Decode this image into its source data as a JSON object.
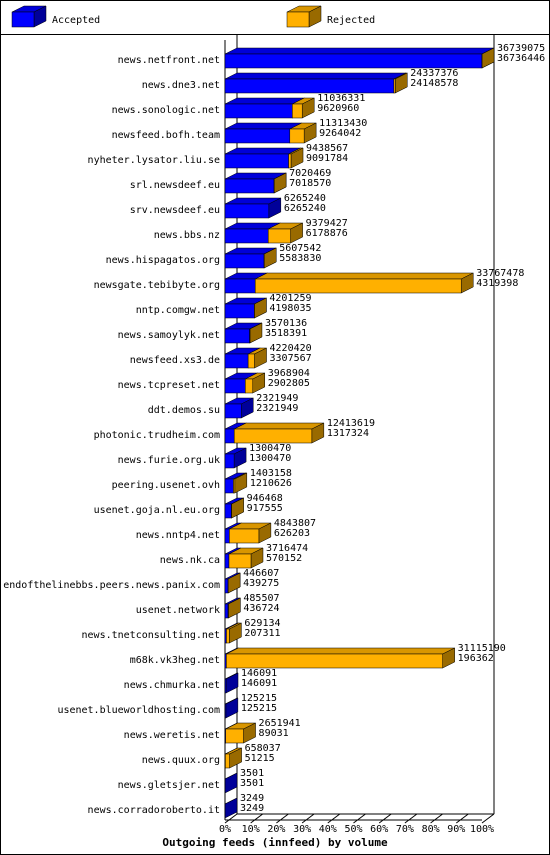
{
  "chart_data": {
    "type": "bar3d-stacked-horizontal",
    "title": "Outgoing feeds (innfeed) by volume",
    "categories": [
      "news.netfront.net",
      "news.dne3.net",
      "news.sonologic.net",
      "newsfeed.bofh.team",
      "nyheter.lysator.liu.se",
      "srl.newsdeef.eu",
      "srv.newsdeef.eu",
      "news.bbs.nz",
      "news.hispagatos.org",
      "newsgate.tebibyte.org",
      "nntp.comgw.net",
      "news.samoylyk.net",
      "newsfeed.xs3.de",
      "news.tcpreset.net",
      "ddt.demos.su",
      "photonic.trudheim.com",
      "news.furie.org.uk",
      "peering.usenet.ovh",
      "usenet.goja.nl.eu.org",
      "news.nntp4.net",
      "news.nk.ca",
      "endofthelinebbs.peers.news.panix.com",
      "usenet.network",
      "news.tnetconsulting.net",
      "m68k.vk3heg.net",
      "news.chmurka.net",
      "usenet.blueworldhosting.com",
      "news.weretis.net",
      "news.quux.org",
      "news.gletsjer.net",
      "news.corradoroberto.it"
    ],
    "totals": [
      36739075,
      24337376,
      11036331,
      11313430,
      9438567,
      7020469,
      6265240,
      9379427,
      5607542,
      33767478,
      4201259,
      3570136,
      4220420,
      3968904,
      2321949,
      12413619,
      1300470,
      1403158,
      946468,
      4843807,
      3716474,
      446607,
      485507,
      629134,
      31115190,
      146091,
      125215,
      2651941,
      658037,
      3501,
      3249
    ],
    "series": [
      {
        "name": "Accepted",
        "color": "#0000ff",
        "values": [
          36736446,
          24148578,
          9620960,
          9264042,
          9091784,
          7018570,
          6265240,
          6178876,
          5583830,
          4319398,
          4198035,
          3518391,
          3307567,
          2902805,
          2321949,
          1317324,
          1300470,
          1210626,
          917555,
          626203,
          570152,
          439275,
          436724,
          207311,
          196362,
          146091,
          125215,
          89031,
          51215,
          3501,
          3249
        ]
      },
      {
        "name": "Rejected",
        "color": "#ffb000",
        "values": [
          2629,
          188798,
          1415371,
          2049388,
          346783,
          1899,
          0,
          3200551,
          23712,
          29448080,
          3224,
          51745,
          912853,
          1066099,
          0,
          11096295,
          0,
          192532,
          28913,
          4217604,
          3146322,
          7332,
          48783,
          421823,
          30918828,
          0,
          0,
          2562910,
          606822,
          0,
          0
        ]
      }
    ],
    "xlim": [
      0,
      36739075
    ],
    "xticks": [
      {
        "value": 0,
        "label": "0%"
      },
      {
        "value": 3673907.5,
        "label": "10%"
      },
      {
        "value": 7347815,
        "label": "20%"
      },
      {
        "value": 11021722.5,
        "label": "30%"
      },
      {
        "value": 14695630,
        "label": "40%"
      },
      {
        "value": 18369537.5,
        "label": "50%"
      },
      {
        "value": 22043445,
        "label": "60%"
      },
      {
        "value": 25717352.5,
        "label": "70%"
      },
      {
        "value": 29391260,
        "label": "80%"
      },
      {
        "value": 33065167.5,
        "label": "90%"
      },
      {
        "value": 36739075,
        "label": "100%"
      }
    ]
  }
}
